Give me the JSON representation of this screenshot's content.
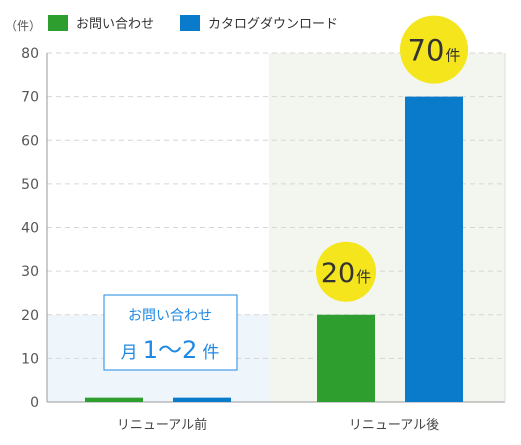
{
  "chart_data": {
    "type": "bar",
    "unit_label": "（件）",
    "categories": [
      "リニューアル前",
      "リニューアル後"
    ],
    "series": [
      {
        "name": "お問い合わせ",
        "color": "#2e9e2e",
        "values": [
          1,
          20
        ]
      },
      {
        "name": "カタログダウンロード",
        "color": "#0a7acb",
        "values": [
          1,
          70
        ]
      }
    ],
    "ylim": [
      0,
      80
    ],
    "yticks": [
      0,
      10,
      20,
      30,
      40,
      50,
      60,
      70,
      80
    ],
    "grid": true,
    "legend": "top-left",
    "badges": [
      {
        "value": "20",
        "unit": "件",
        "series": 0,
        "category": 1
      },
      {
        "value": "70",
        "unit": "件",
        "series": 1,
        "category": 1
      }
    ],
    "note": {
      "line1": "お問い合わせ",
      "line2_prefix": "月",
      "line2_value": "1〜2",
      "line2_suffix": "件"
    },
    "colors": {
      "badge": "#f4e51c",
      "note_border": "#1e88e5",
      "note_text": "#1e88e5",
      "before_shade": "#eef6fc",
      "after_shade": "#f3f6ef",
      "grid": "#d6d6d6",
      "axis": "#999999"
    }
  }
}
